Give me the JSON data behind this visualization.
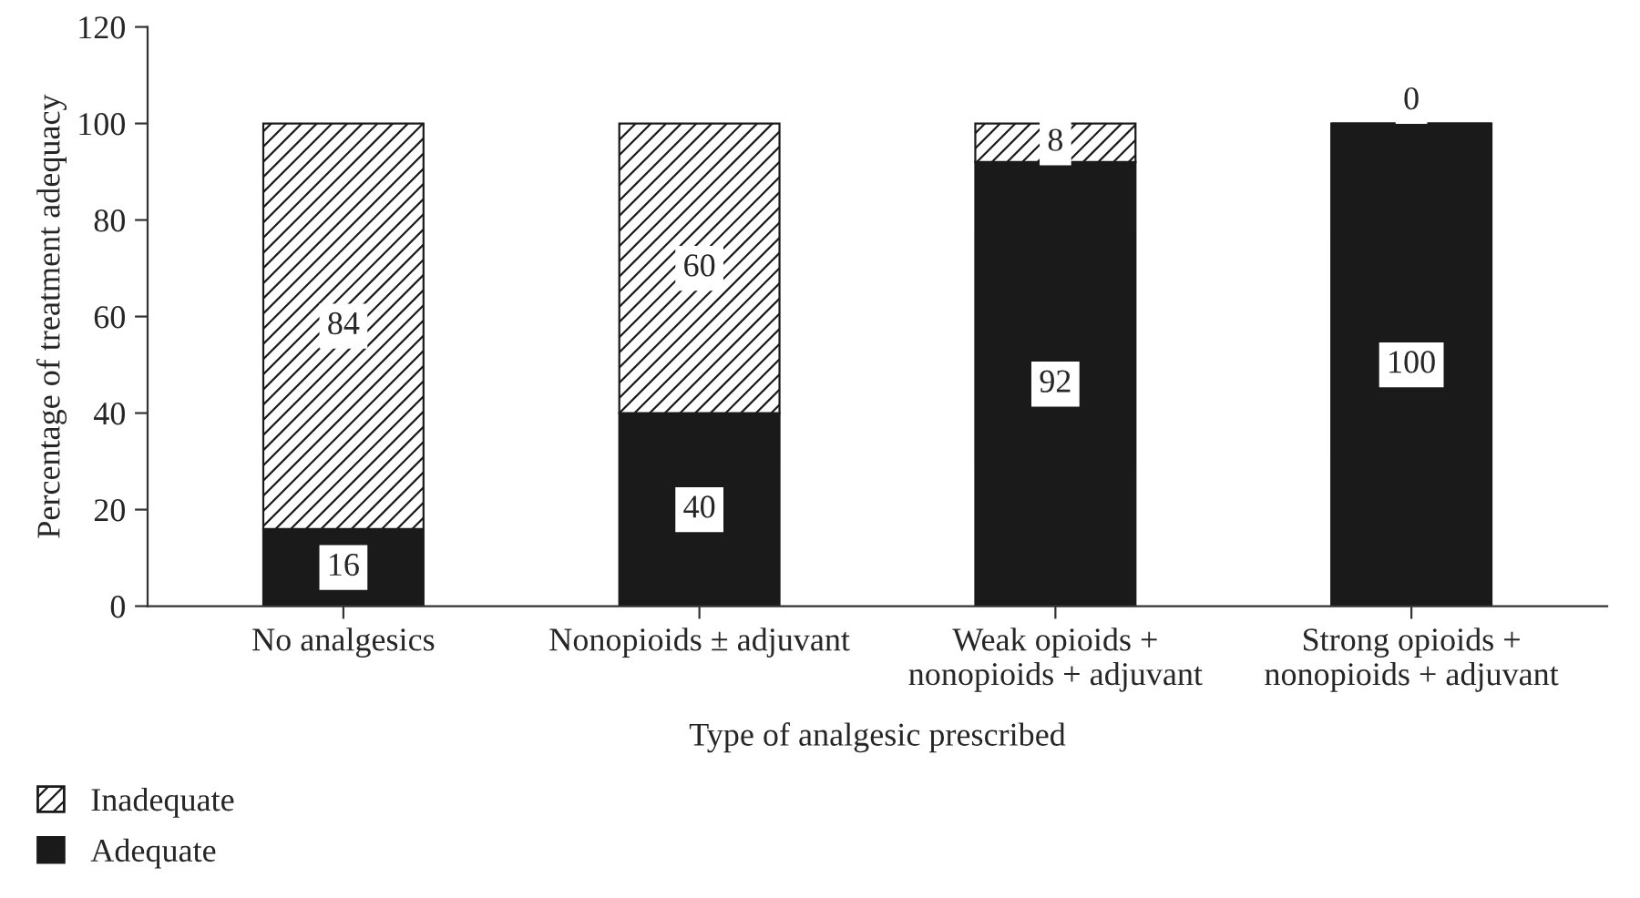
{
  "chart_data": {
    "type": "bar",
    "stacked": true,
    "xlabel": "Type of analgesic prescribed",
    "ylabel": "Percentage of treatment adequacy",
    "categories": [
      "No analgesics",
      "Nonopioids ± adjuvant",
      "Weak opioids +\nnonopioids + adjuvant",
      "Strong opioids +\nnonopioids + adjuvant"
    ],
    "series": [
      {
        "name": "Adequate",
        "color": "#1a1a1a",
        "values": [
          16,
          40,
          92,
          100
        ]
      },
      {
        "name": "Inadequate",
        "color": "#1a1a1a",
        "values": [
          84,
          60,
          8,
          0
        ]
      }
    ],
    "ylim": [
      0,
      120
    ],
    "yticks": [
      0,
      20,
      40,
      60,
      80,
      100,
      120
    ],
    "data_labels": true,
    "grid": false,
    "legend": "bottom left"
  }
}
